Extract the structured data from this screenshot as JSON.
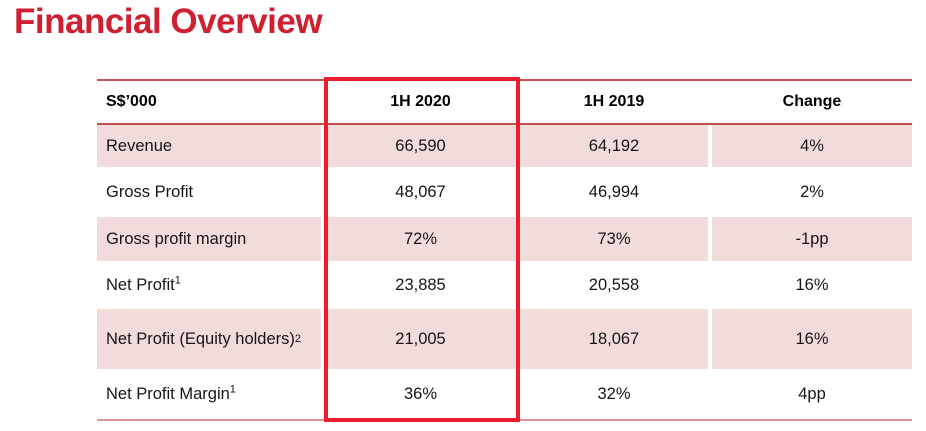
{
  "title": "Financial Overview",
  "table": {
    "columns": [
      "S$’000",
      "1H 2020",
      "1H 2019",
      "Change"
    ],
    "rows": [
      {
        "label": "Revenue",
        "sup": "",
        "h1_2020": "66,590",
        "h1_2019": "64,192",
        "change": "4%"
      },
      {
        "label": "Gross Profit",
        "sup": "",
        "h1_2020": "48,067",
        "h1_2019": "46,994",
        "change": "2%"
      },
      {
        "label": "Gross profit margin",
        "sup": "",
        "h1_2020": "72%",
        "h1_2019": "73%",
        "change": "-1pp"
      },
      {
        "label": "Net Profit",
        "sup": "1",
        "h1_2020": "23,885",
        "h1_2019": "20,558",
        "change": "16%"
      },
      {
        "label": "Net Profit (Equity holders)",
        "sup": "2",
        "h1_2020": "21,005",
        "h1_2019": "18,067",
        "change": "16%"
      },
      {
        "label": "Net Profit Margin",
        "sup": "1",
        "h1_2020": "36%",
        "h1_2019": "32%",
        "change": "4pp"
      }
    ],
    "highlighted_column": "1H 2020",
    "colors": {
      "title_red": "#ce2030",
      "band_pink": "#f2dcdb",
      "rule_red": "#c0504d",
      "rule_bottom_salmon": "#d99694",
      "highlight_box_red": "#ee1c2e"
    }
  }
}
